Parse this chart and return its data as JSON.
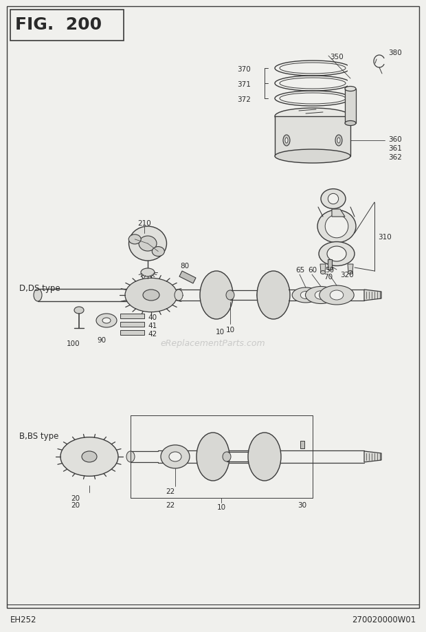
{
  "title": "FIG. 200",
  "fig_width": 6.2,
  "fig_height": 9.2,
  "bg_color": "#f0f0ed",
  "line_color": "#3a3a3a",
  "text_color": "#2a2a2a",
  "watermark": "eReplacementParts.com",
  "footer_left": "EH252",
  "footer_right": "270020000W01"
}
